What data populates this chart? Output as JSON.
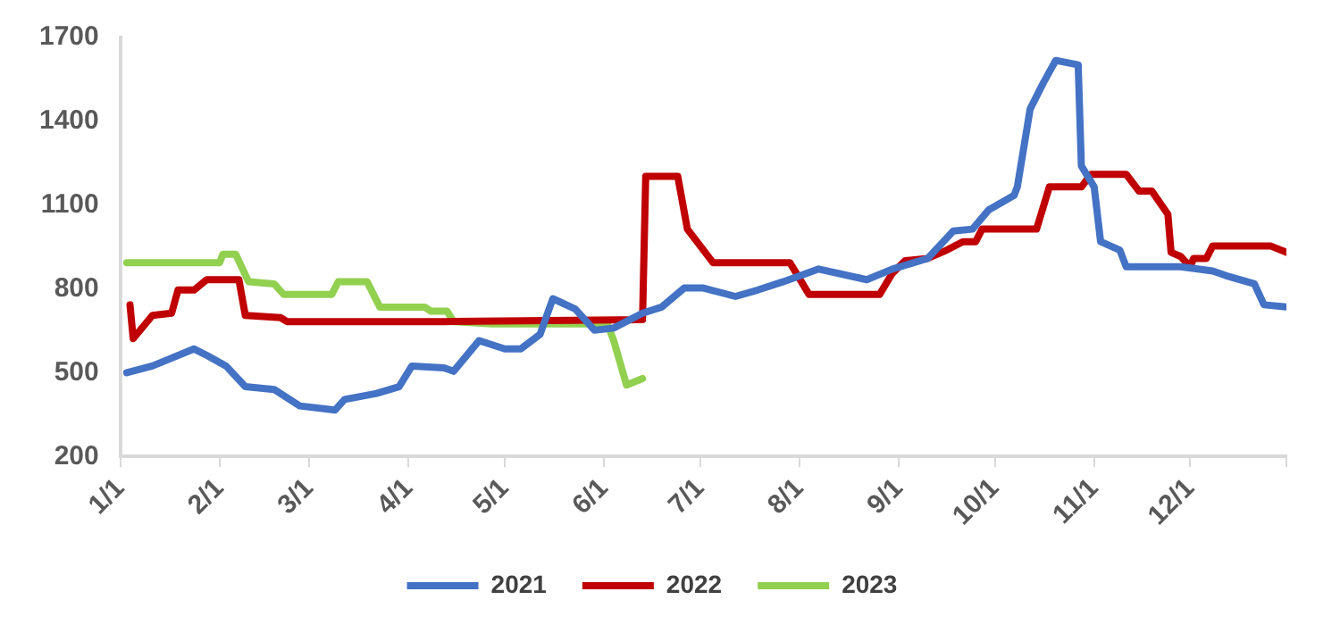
{
  "chart_data": {
    "type": "line",
    "xlim": [
      "--01-01",
      "--12-31"
    ],
    "xticks": [
      {
        "value": "--01-01",
        "label": "1/1"
      },
      {
        "value": "--02-01",
        "label": "2/1"
      },
      {
        "value": "--03-01",
        "label": "3/1"
      },
      {
        "value": "--04-01",
        "label": "4/1"
      },
      {
        "value": "--05-01",
        "label": "5/1"
      },
      {
        "value": "--06-01",
        "label": "6/1"
      },
      {
        "value": "--07-01",
        "label": "7/1"
      },
      {
        "value": "--08-01",
        "label": "8/1"
      },
      {
        "value": "--09-01",
        "label": "9/1"
      },
      {
        "value": "--10-01",
        "label": "10/1"
      },
      {
        "value": "--11-01",
        "label": "11/1"
      },
      {
        "value": "--12-01",
        "label": "12/1"
      },
      {
        "value": "--12-31",
        "label": null
      }
    ],
    "ylim": [
      200,
      1700
    ],
    "yticks": [
      200,
      500,
      800,
      1100,
      1400,
      1700
    ],
    "grid": false,
    "legend": "bottom",
    "marker": "none",
    "line_style": "solid",
    "series": [
      {
        "name": "2021",
        "color": "#4472c4",
        "x": [
          "--01-03",
          "--01-11",
          "--01-24",
          "--01-28",
          "--02-03",
          "--02-09",
          "--02-18",
          "--02-26",
          "--03-09",
          "--03-12",
          "--03-22",
          "--03-29",
          "--04-02",
          "--04-12",
          "--04-15",
          "--04-23",
          "--05-01",
          "--05-06",
          "--05-12",
          "--05-16",
          "--05-23",
          "--05-29",
          "--06-04",
          "--06-13",
          "--06-19",
          "--06-26",
          "--07-02",
          "--07-12",
          "--07-19",
          "--07-27",
          "--08-07",
          "--08-22",
          "--08-30",
          "--09-10",
          "--09-18",
          "--09-24",
          "--09-29",
          "--10-07",
          "--10-08",
          "--10-12",
          "--10-16",
          "--10-20",
          "--10-27",
          "--10-28",
          "--11-01",
          "--11-03",
          "--11-09",
          "--11-11",
          "--11-28",
          "--12-08",
          "--12-12",
          "--12-21",
          "--12-24",
          "--12-31"
        ],
        "values": [
          500,
          524,
          585,
          562,
          524,
          450,
          440,
          381,
          366,
          404,
          426,
          450,
          524,
          517,
          505,
          615,
          585,
          585,
          637,
          765,
          728,
          652,
          660,
          713,
          735,
          803,
          803,
          773,
          796,
          826,
          871,
          833,
          871,
          909,
          1007,
          1014,
          1082,
          1135,
          1165,
          1444,
          1535,
          1618,
          1602,
          1240,
          1165,
          969,
          939,
          879,
          879,
          864,
          848,
          818,
          743,
          735
        ]
      },
      {
        "name": "2022",
        "color": "#c00000",
        "x": [
          "--01-04",
          "--01-05",
          "--01-11",
          "--01-17",
          "--01-19",
          "--01-24",
          "--01-28",
          "--02-07",
          "--02-09",
          "--02-20",
          "--02-22",
          "--04-12",
          "--06-13",
          "--06-14",
          "--06-24",
          "--06-27",
          "--06-30",
          "--07-05",
          "--07-29",
          "--08-04",
          "--08-26",
          "--08-30",
          "--09-03",
          "--09-10",
          "--09-16",
          "--09-21",
          "--09-25",
          "--09-27",
          "--10-14",
          "--10-18",
          "--10-28",
          "--10-31",
          "--11-11",
          "--11-15",
          "--11-19",
          "--11-24",
          "--11-25",
          "--11-28",
          "--12-01",
          "--12-02",
          "--12-06",
          "--12-08",
          "--12-26",
          "--12-31"
        ],
        "values": [
          743,
          622,
          705,
          713,
          796,
          796,
          833,
          833,
          705,
          697,
          683,
          683,
          690,
          1203,
          1203,
          1014,
          969,
          894,
          894,
          780,
          780,
          856,
          901,
          909,
          939,
          969,
          969,
          1014,
          1014,
          1165,
          1165,
          1210,
          1210,
          1150,
          1150,
          1067,
          931,
          916,
          879,
          909,
          909,
          954,
          954,
          931
        ]
      },
      {
        "name": "2023",
        "color": "#92d050",
        "x": [
          "--01-03",
          "--02-01",
          "--02-02",
          "--02-06",
          "--02-10",
          "--02-18",
          "--02-21",
          "--03-08",
          "--03-10",
          "--03-19",
          "--03-23",
          "--04-06",
          "--04-08",
          "--04-13",
          "--04-15",
          "--04-27",
          "--06-02",
          "--06-04",
          "--06-08",
          "--06-13"
        ],
        "values": [
          894,
          894,
          924,
          924,
          826,
          818,
          780,
          780,
          826,
          826,
          735,
          735,
          720,
          720,
          683,
          675,
          675,
          615,
          456,
          479
        ]
      }
    ]
  }
}
